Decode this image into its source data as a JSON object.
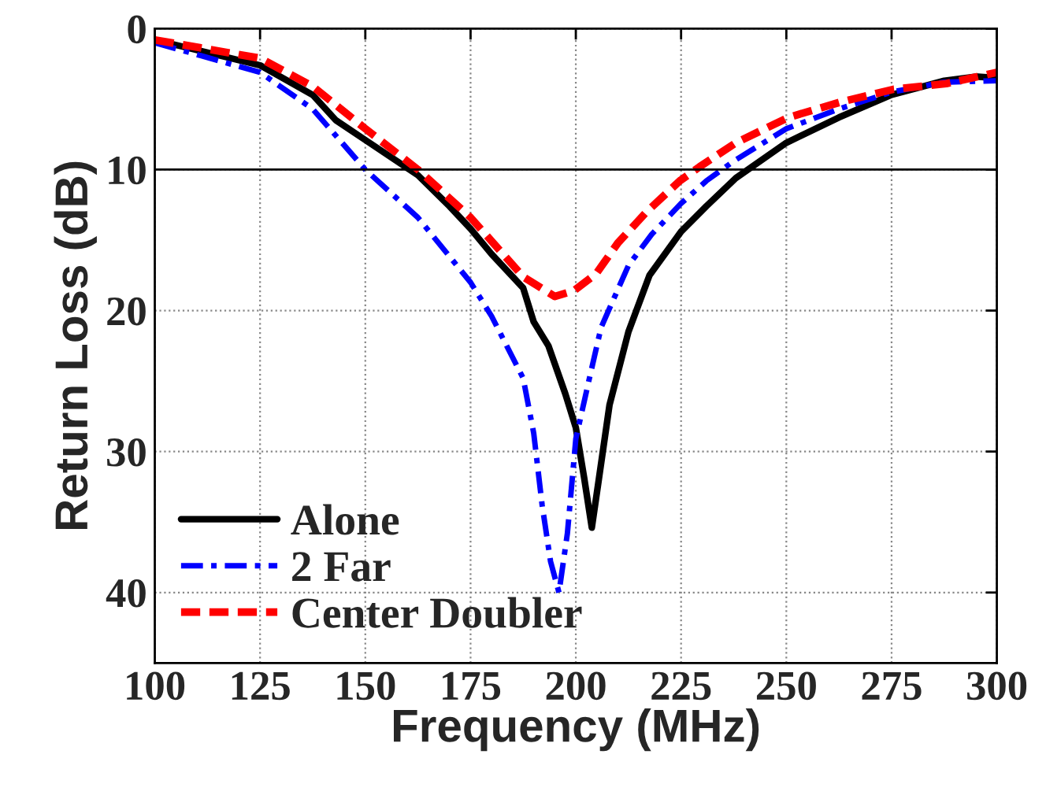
{
  "chart_data": {
    "type": "line",
    "xlabel": "Frequency (MHz)",
    "ylabel": "Return Loss (dB)",
    "xlim": [
      100,
      300
    ],
    "xticks": [
      100,
      125,
      150,
      175,
      200,
      225,
      250,
      275,
      300
    ],
    "ylim": [
      45,
      0
    ],
    "yticks": [
      0,
      10,
      20,
      30,
      40
    ],
    "grid": true,
    "legend": "bottom left",
    "ref_lines": [
      {
        "axis": "y",
        "value": 10,
        "color": "#000000",
        "line_style": "solid"
      }
    ],
    "series": [
      {
        "name": "Alone",
        "color": "#000000",
        "line_style": "solid",
        "x": [
          100,
          112.5,
          125,
          137.5,
          143,
          150,
          162.5,
          170,
          175,
          180,
          187.5,
          190,
          193.5,
          197.5,
          200,
          202,
          203.8,
          205.5,
          208,
          212.5,
          217.5,
          225,
          231,
          238,
          250,
          262.5,
          275,
          287.5,
          295,
          300
        ],
        "values": [
          0.8,
          1.7,
          2.6,
          4.7,
          6.5,
          7.9,
          10.4,
          12.6,
          14.2,
          16.0,
          18.4,
          20.8,
          22.5,
          25.9,
          28.3,
          31.9,
          35.4,
          31.9,
          26.7,
          21.5,
          17.5,
          14.4,
          12.6,
          10.6,
          8.1,
          6.3,
          4.7,
          3.7,
          3.4,
          3.5
        ]
      },
      {
        "name": "2 Far",
        "color": "#0000ff",
        "line_style": "dashdot",
        "x": [
          100,
          125,
          137.5,
          150,
          162.5,
          175,
          180,
          187.5,
          190,
          192,
          194,
          196,
          198,
          200,
          203,
          206,
          212.5,
          218,
          225,
          231,
          237.5,
          250,
          262.5,
          275,
          287.5,
          300
        ],
        "values": [
          1.0,
          3.1,
          5.7,
          10.0,
          13.4,
          18.0,
          20.4,
          24.8,
          28.7,
          33.8,
          37.8,
          40.0,
          35.8,
          29.1,
          25.1,
          21.2,
          16.8,
          14.6,
          12.4,
          10.8,
          9.4,
          7.1,
          5.7,
          4.5,
          3.8,
          3.7
        ]
      },
      {
        "name": "Center Doubler",
        "color": "#ff0000",
        "line_style": "dashed",
        "x": [
          100,
          125,
          137.5,
          150,
          162.5,
          175,
          187.5,
          195,
          199.5,
          204.8,
          210,
          216.8,
          224.7,
          229.4,
          238,
          250.5,
          263,
          275.5,
          288,
          300
        ],
        "values": [
          0.8,
          2.1,
          4.1,
          7.1,
          10.0,
          13.4,
          17.6,
          19.0,
          18.6,
          17.4,
          15.2,
          13.0,
          10.8,
          9.8,
          8.1,
          6.3,
          5.2,
          4.3,
          3.9,
          3.1
        ]
      }
    ]
  }
}
